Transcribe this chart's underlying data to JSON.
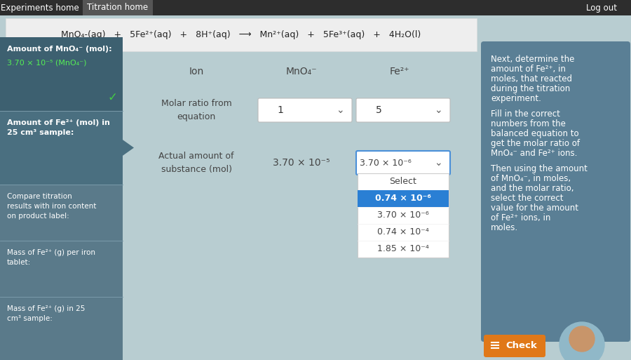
{
  "nav_bg": "#2d2d2d",
  "nav_items": [
    "Experiments home",
    "Titration home",
    "Log out"
  ],
  "equation": "MnO₄-(aq)   +   5Fe²⁺(aq)   +   8H⁺(aq)   ⟶   Mn²⁺(aq)   +   5Fe³⁺(aq)   +   4H₂O(l)",
  "eq_bg": "#efefef",
  "left_panel_bg": "#5a7a8a",
  "left_item0_bg": "#3d6070",
  "left_item1_bg": "#4a6f80",
  "left_item_other_bg": "#5a7a8a",
  "main_bg": "#b8cdd1",
  "right_panel_bg": "#5a7f95",
  "right_para1": "Next, determine the amount of Fe²⁺, in moles, that reacted during the titration experiment.",
  "right_para2": "Fill in the correct numbers from the balanced equation to get the molar ratio of MnO₄⁻ and Fe²⁺ ions.",
  "right_para3": "Then using the amount of MnO₄⁻, in moles, and the molar ratio, select the correct value for the amount of Fe²⁺ ions, in moles.",
  "table_header_ion": "Ion",
  "table_header_mno4": "MnO₄⁻",
  "table_header_fe2": "Fe²⁺",
  "row1_label": "Molar ratio from\nequation",
  "row1_mno4": "1",
  "row1_fe2": "5",
  "row2_label": "Actual amount of\nsubstance (mol)",
  "row2_mno4": "3.70 × 10⁻⁵",
  "row2_fe2_selected": "3.70 × 10⁻⁶",
  "dropdown_items": [
    "Select",
    "0.74 × 10⁻⁶",
    "3.70 × 10⁻⁶",
    "0.74 × 10⁻⁴",
    "1.85 × 10⁻⁴"
  ],
  "dropdown_selected": "0.74 × 10⁻⁶",
  "dropdown_highlight": "#2a7fd4",
  "check_btn_bg": "#e07818",
  "check_btn_text": "  Check",
  "green_check_color": "#44cc44",
  "left_item0_title": "Amount of MnO₄⁻ (mol):",
  "left_item0_value": "3.70 × 10⁻⁵ (MnO₄⁻)",
  "left_item1_title": "Amount of Fe²⁺ (mol) in\n25 cm³ sample:",
  "left_item2_title": "Mass of Fe²⁺ (g) in 25\ncm³ sample:",
  "left_item3_title": "Mass of Fe²⁺ (g) per iron\ntablet:",
  "left_item4_title": "Compare titration\nresults with iron content\non product label:"
}
